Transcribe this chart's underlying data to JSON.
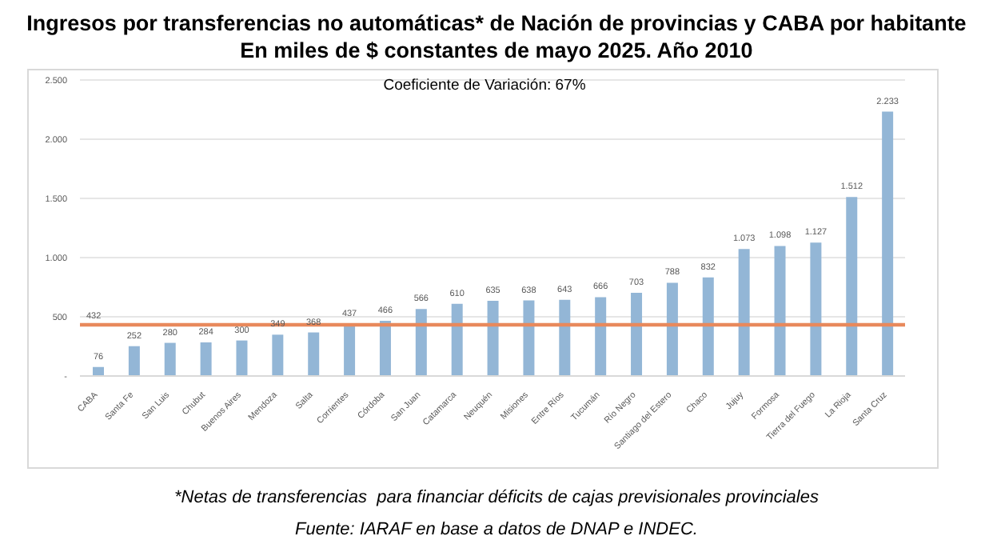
{
  "chart_data": {
    "type": "bar",
    "title": "Ingresos por transferencias no automáticas* de Nación de provincias y CABA por habitante\nEn miles de $ constantes de mayo 2025. Año 2010",
    "categories": [
      "CABA",
      "Santa Fe",
      "San Luis",
      "Chubut",
      "Buenos Aires",
      "Mendoza",
      "Salta",
      "Corrientes",
      "Córdoba",
      "San Juan",
      "Catamarca",
      "Neuquén",
      "Misiones",
      "Entre Ríos",
      "Tucumán",
      "Río Negro",
      "Santiago del Estero",
      "Chaco",
      "Jujuy",
      "Formosa",
      "Tierra del Fuego",
      "La Rioja",
      "Santa Cruz"
    ],
    "values": [
      76,
      252,
      280,
      284,
      300,
      349,
      368,
      437,
      466,
      566,
      610,
      635,
      638,
      643,
      666,
      703,
      788,
      832,
      1073,
      1098,
      1127,
      1512,
      2233
    ],
    "value_labels": [
      "76",
      "252",
      "280",
      "284",
      "300",
      "349",
      "368",
      "437",
      "466",
      "566",
      "610",
      "635",
      "638",
      "643",
      "666",
      "703",
      "788",
      "832",
      "1.073",
      "1.098",
      "1.127",
      "1.512",
      "2.233"
    ],
    "color": "#93b6d6",
    "ylim": [
      0,
      2500
    ],
    "yticks": [
      {
        "value": 0,
        "label": "-"
      },
      {
        "value": 500,
        "label": "500"
      },
      {
        "value": 1000,
        "label": "1.000"
      },
      {
        "value": 1500,
        "label": "1.500"
      },
      {
        "value": 2000,
        "label": "2.000"
      },
      {
        "value": 2500,
        "label": "2.500"
      }
    ],
    "grid": "y",
    "ref_lines": [
      {
        "axis": "y",
        "value": 432,
        "label": "432",
        "color": "#e8895c"
      }
    ],
    "annotations": [
      "Coeficiente de Variación: 67%",
      "*Netas de transferencias  para financiar déficits de cajas previsionales provinciales",
      "Fuente: IARAF en base a datos de DNAP e INDEC."
    ]
  }
}
